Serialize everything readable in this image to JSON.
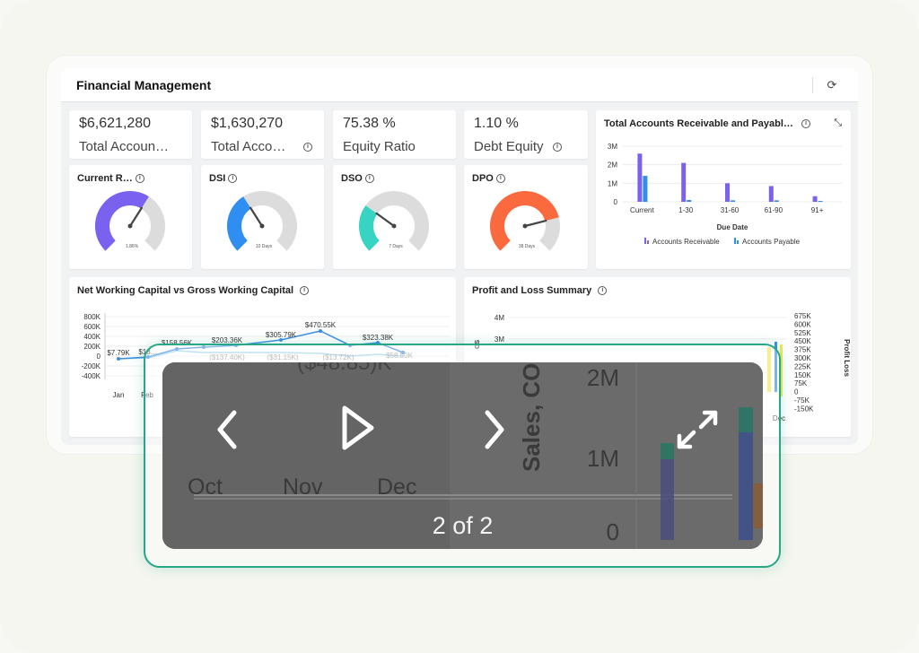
{
  "dashboard": {
    "title": "Financial Management",
    "refresh_icon": "refresh-icon"
  },
  "kpis": [
    {
      "value": "$6,621,280",
      "label": "Total Accoun…"
    },
    {
      "value": "$1,630,270",
      "label": "Total Acco…"
    },
    {
      "value": "75.38 %",
      "label": "Equity Ratio"
    },
    {
      "value": "1.10 %",
      "label": "Debt Equity"
    }
  ],
  "gauges": [
    {
      "title": "Current R…",
      "caption": "1.86%",
      "color": "#7b61f0",
      "fill": 0.62
    },
    {
      "title": "DSI",
      "caption": "10 Days",
      "color": "#2e8ff0",
      "fill": 0.38
    },
    {
      "title": "DSO",
      "caption": "7 Days",
      "color": "#37d3c3",
      "fill": 0.3
    },
    {
      "title": "DPO",
      "caption": "38 Days",
      "color": "#fa6a3e",
      "fill": 0.78
    }
  ],
  "receivable_chart": {
    "title": "Total Accounts Receivable and Payabl…",
    "xlabel": "Due Date",
    "chart_data": {
      "type": "bar",
      "title": "Total Accounts Receivable and Payabl…",
      "xlabel": "Due Date",
      "categories": [
        "Current",
        "1-30",
        "31-60",
        "61-90",
        "91+"
      ],
      "series": [
        {
          "name": "Accounts Receivable",
          "color": "#7b61f0",
          "values": [
            2.6,
            2.1,
            1.0,
            0.85,
            0.3
          ]
        },
        {
          "name": "Accounts Payable",
          "color": "#2e8ff0",
          "values": [
            1.4,
            0.1,
            0.08,
            0.08,
            0.05
          ]
        }
      ],
      "yticks": [
        "0",
        "1M",
        "2M",
        "3M"
      ],
      "ylim": [
        0,
        3
      ]
    }
  },
  "working_capital_chart": {
    "title": "Net Working Capital vs Gross Working Capital",
    "yticks": [
      "800K",
      "600K",
      "400K",
      "200K",
      "0",
      "-200K",
      "-400K"
    ],
    "xticks": [
      "Jan",
      "Feb"
    ],
    "labels": [
      "$7.79K",
      "$18…",
      "$158.56K",
      "$203.36K",
      "$305.79K",
      "$470.55K",
      "$323.38K",
      "($31.15K)",
      "($137.40K)",
      "($13.72K)",
      "$58.50K"
    ]
  },
  "pnl_chart": {
    "title": "Profit and Loss Summary",
    "yticks_left": [
      "4M",
      "3M"
    ],
    "yticks_right": [
      "675K",
      "600K",
      "525K",
      "450K",
      "375K",
      "300K",
      "225K",
      "150K",
      "75K",
      "0",
      "-75K",
      "-150K"
    ],
    "right_label": "Profit Loss",
    "left_label": "GS",
    "xlast": "Dec"
  },
  "viewer": {
    "counter": "2 of 2",
    "bg_ylabel": "Sales, CO",
    "bg_months": [
      "Oct",
      "Nov",
      "Dec"
    ],
    "bg_yticks": [
      "2M",
      "1M",
      "0"
    ],
    "bg_callout": "($48.85)K",
    "prev_icon": "chevron-left-icon",
    "play_icon": "play-icon",
    "next_icon": "chevron-right-icon",
    "fullscreen_icon": "expand-icon"
  }
}
